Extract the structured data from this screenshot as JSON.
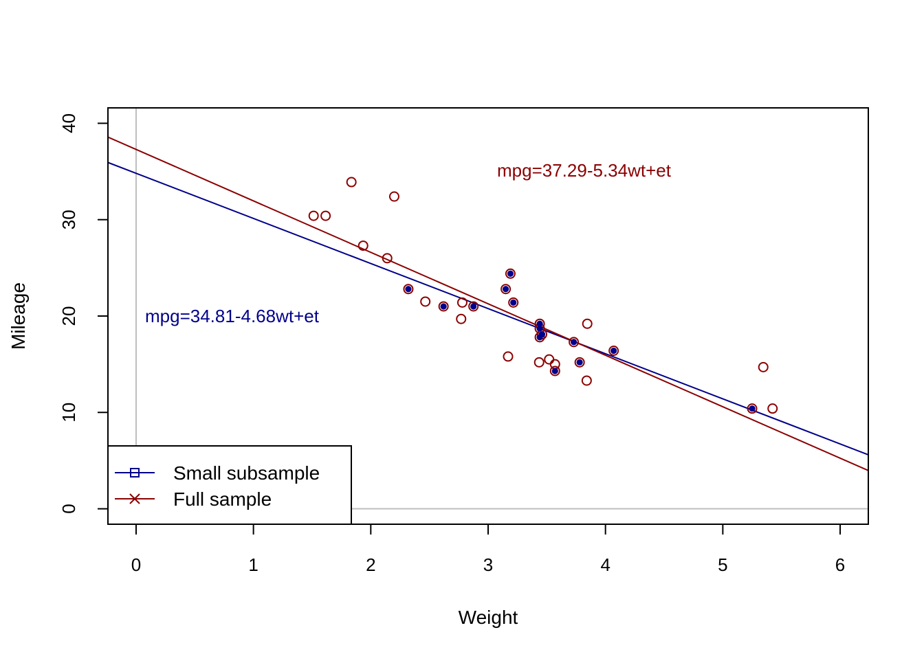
{
  "chart_data": {
    "type": "scatter",
    "xlabel": "Weight",
    "ylabel": "Mileage",
    "xlim": [
      -0.24,
      6.24
    ],
    "ylim": [
      -1.6,
      41.6
    ],
    "x_ticks": [
      0,
      1,
      2,
      3,
      4,
      5,
      6
    ],
    "y_ticks": [
      0,
      10,
      20,
      30,
      40
    ],
    "reference_lines": {
      "vertical_x": 0,
      "horizontal_y": 0,
      "color": "#bebebe"
    },
    "full_sample": {
      "name": "Full sample",
      "color": "#8b0000",
      "points": [
        [
          2.62,
          21.0
        ],
        [
          2.875,
          21.0
        ],
        [
          2.32,
          22.8
        ],
        [
          3.215,
          21.4
        ],
        [
          3.44,
          18.7
        ],
        [
          3.46,
          18.1
        ],
        [
          3.57,
          14.3
        ],
        [
          3.19,
          24.4
        ],
        [
          3.15,
          22.8
        ],
        [
          3.44,
          19.2
        ],
        [
          3.44,
          17.8
        ],
        [
          4.07,
          16.4
        ],
        [
          3.73,
          17.3
        ],
        [
          3.78,
          15.2
        ],
        [
          5.25,
          10.4
        ],
        [
          5.424,
          10.4
        ],
        [
          5.345,
          14.7
        ],
        [
          2.2,
          32.4
        ],
        [
          1.615,
          30.4
        ],
        [
          1.835,
          33.9
        ],
        [
          2.465,
          21.5
        ],
        [
          3.52,
          15.5
        ],
        [
          3.435,
          15.2
        ],
        [
          3.84,
          13.3
        ],
        [
          3.845,
          19.2
        ],
        [
          1.935,
          27.3
        ],
        [
          2.14,
          26.0
        ],
        [
          1.513,
          30.4
        ],
        [
          3.17,
          15.8
        ],
        [
          2.77,
          19.7
        ],
        [
          3.57,
          15.0
        ],
        [
          2.78,
          21.4
        ]
      ],
      "fit": {
        "intercept": 37.29,
        "slope": -5.34
      },
      "equation": "mpg=37.29-5.34wt+et"
    },
    "small_subsample": {
      "name": "Small subsample",
      "color": "#00008b",
      "points": [
        [
          2.62,
          21.0
        ],
        [
          2.875,
          21.0
        ],
        [
          2.32,
          22.8
        ],
        [
          3.215,
          21.4
        ],
        [
          3.44,
          18.7
        ],
        [
          3.46,
          18.1
        ],
        [
          3.57,
          14.3
        ],
        [
          3.19,
          24.4
        ],
        [
          3.15,
          22.8
        ],
        [
          3.44,
          19.2
        ],
        [
          3.44,
          17.8
        ],
        [
          4.07,
          16.4
        ],
        [
          3.73,
          17.3
        ],
        [
          3.78,
          15.2
        ],
        [
          5.25,
          10.4
        ]
      ],
      "fit": {
        "intercept": 34.81,
        "slope": -4.68
      },
      "equation": "mpg=34.81-4.68wt+et"
    },
    "legend": {
      "position": "bottom-left",
      "items": [
        {
          "label": "Small subsample",
          "symbol": "square",
          "color": "#00008b"
        },
        {
          "label": "Full sample",
          "symbol": "cross",
          "color": "#8b0000"
        }
      ]
    }
  }
}
